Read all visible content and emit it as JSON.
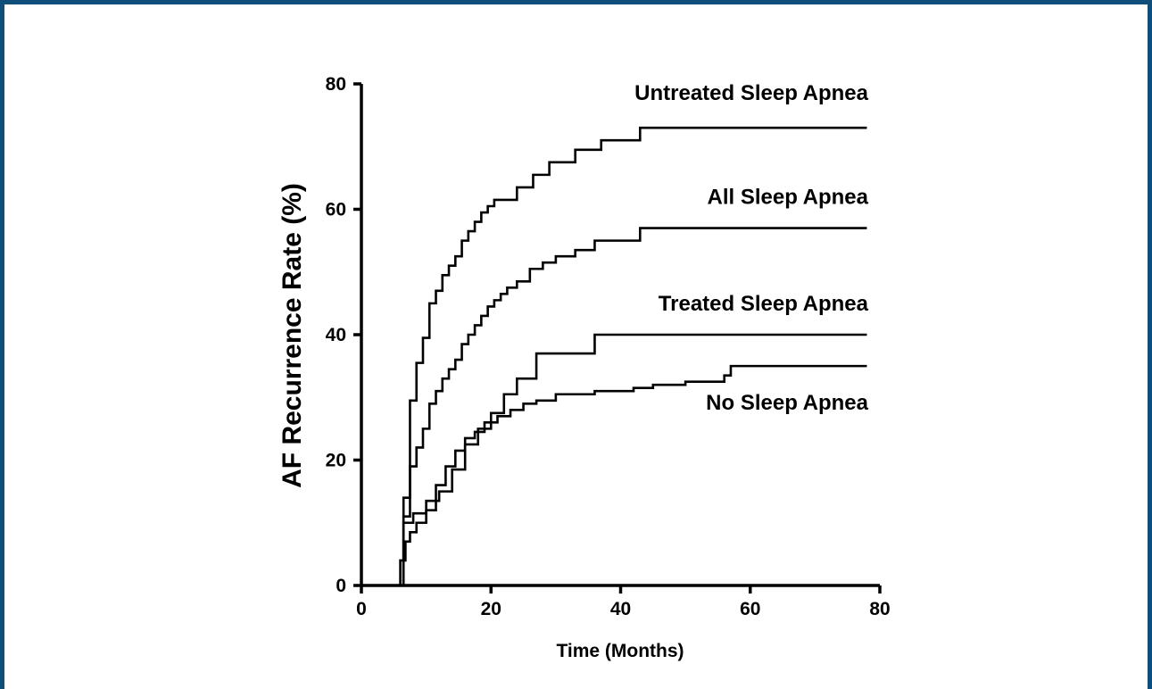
{
  "chart_data": {
    "type": "line",
    "step": true,
    "xlabel": "Time (Months)",
    "ylabel": "AF Recurrence Rate (%)",
    "xlim": [
      0,
      80
    ],
    "ylim": [
      0,
      80
    ],
    "xticks": [
      0,
      20,
      40,
      60,
      80
    ],
    "yticks": [
      0,
      20,
      40,
      60,
      80
    ],
    "grid": false,
    "colors": {
      "line": "#000000",
      "frame": "#0f4d7a"
    },
    "series": [
      {
        "name": "Untreated Sleep Apnea",
        "x": [
          0,
          6.5,
          7.5,
          8.5,
          9.5,
          10.5,
          11.5,
          12.5,
          13.5,
          14.5,
          15.5,
          16.5,
          17.5,
          18.5,
          19.5,
          20.5,
          24,
          26.5,
          29,
          33,
          37,
          43,
          78
        ],
        "y": [
          0,
          14,
          29.5,
          35.5,
          39.5,
          45,
          47,
          49.5,
          51,
          52.5,
          55,
          56.5,
          58,
          59.5,
          60.5,
          61.5,
          63.5,
          65.5,
          67.5,
          69.5,
          71,
          73,
          73
        ]
      },
      {
        "name": "All Sleep Apnea",
        "x": [
          0,
          6.5,
          7.5,
          8.5,
          9.5,
          10.5,
          11.5,
          12.5,
          13.5,
          14.5,
          15.5,
          16.5,
          17.5,
          18.5,
          19.5,
          20.5,
          21.5,
          22.5,
          24,
          26,
          28,
          30,
          33,
          36,
          43,
          78
        ],
        "y": [
          0,
          11,
          19,
          22,
          25,
          29,
          31,
          33,
          34.5,
          36,
          38.5,
          40,
          41.5,
          43,
          44.5,
          45.5,
          46.5,
          47.5,
          48.5,
          50.5,
          51.5,
          52.5,
          53.5,
          55,
          57,
          57
        ]
      },
      {
        "name": "Treated Sleep Apnea",
        "x": [
          0,
          6.5,
          8,
          10,
          12,
          14,
          16,
          18,
          20,
          22,
          24,
          27,
          36,
          78
        ],
        "y": [
          0,
          10,
          11.5,
          13.5,
          15,
          18.5,
          22.5,
          25,
          27.5,
          30.5,
          33,
          37,
          40,
          40
        ]
      },
      {
        "name": "No Sleep Apnea",
        "x": [
          0,
          6,
          6.8,
          7.5,
          8.5,
          10,
          11.5,
          13,
          14.5,
          16,
          17.5,
          19,
          21,
          23,
          25,
          27,
          30,
          36,
          42,
          45,
          50,
          56,
          57,
          78
        ],
        "y": [
          0,
          4,
          7,
          8.5,
          10,
          12,
          16,
          19,
          21.5,
          23.5,
          24.5,
          26,
          27,
          28,
          29,
          29.5,
          30.5,
          31,
          31.5,
          32,
          32.5,
          33.5,
          35,
          35
        ]
      }
    ]
  }
}
